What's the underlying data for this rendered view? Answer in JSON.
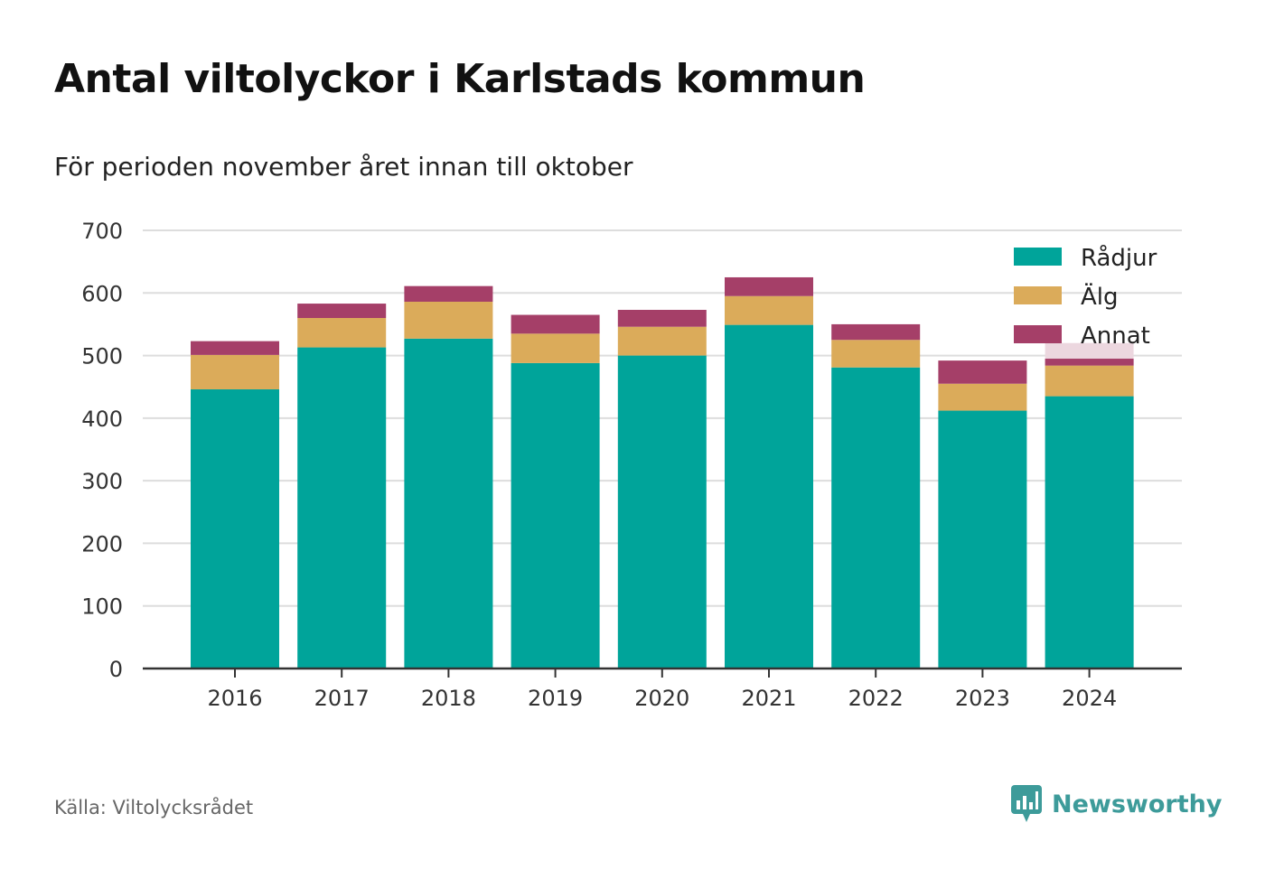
{
  "title": "Antal viltolyckor i Karlstads kommun",
  "subtitle": "För perioden november året innan till oktober",
  "source": "Källa: Viltolycksrådet",
  "brand": {
    "name": "Newsworthy",
    "icon": "newsworthy-logo-icon",
    "color": "#3d9b9a"
  },
  "chart_data": {
    "type": "bar",
    "stacked": true,
    "categories": [
      "2016",
      "2017",
      "2018",
      "2019",
      "2020",
      "2021",
      "2022",
      "2023",
      "2024"
    ],
    "series": [
      {
        "name": "Rådjur",
        "color": "#00a49a",
        "values": [
          446,
          513,
          527,
          488,
          500,
          549,
          481,
          412,
          435
        ]
      },
      {
        "name": "Älg",
        "color": "#dbab5a",
        "values": [
          55,
          47,
          59,
          47,
          46,
          46,
          44,
          43,
          49
        ]
      },
      {
        "name": "Annat",
        "color": "#a53f68",
        "values": [
          22,
          23,
          25,
          30,
          27,
          30,
          25,
          37,
          11
        ]
      }
    ],
    "projection": {
      "category": "2024",
      "value": 520,
      "color": "#ecd7df"
    },
    "ylim": [
      0,
      700
    ],
    "yticks": [
      0,
      100,
      200,
      300,
      400,
      500,
      600,
      700
    ],
    "grid": true,
    "legend": "top-right"
  }
}
